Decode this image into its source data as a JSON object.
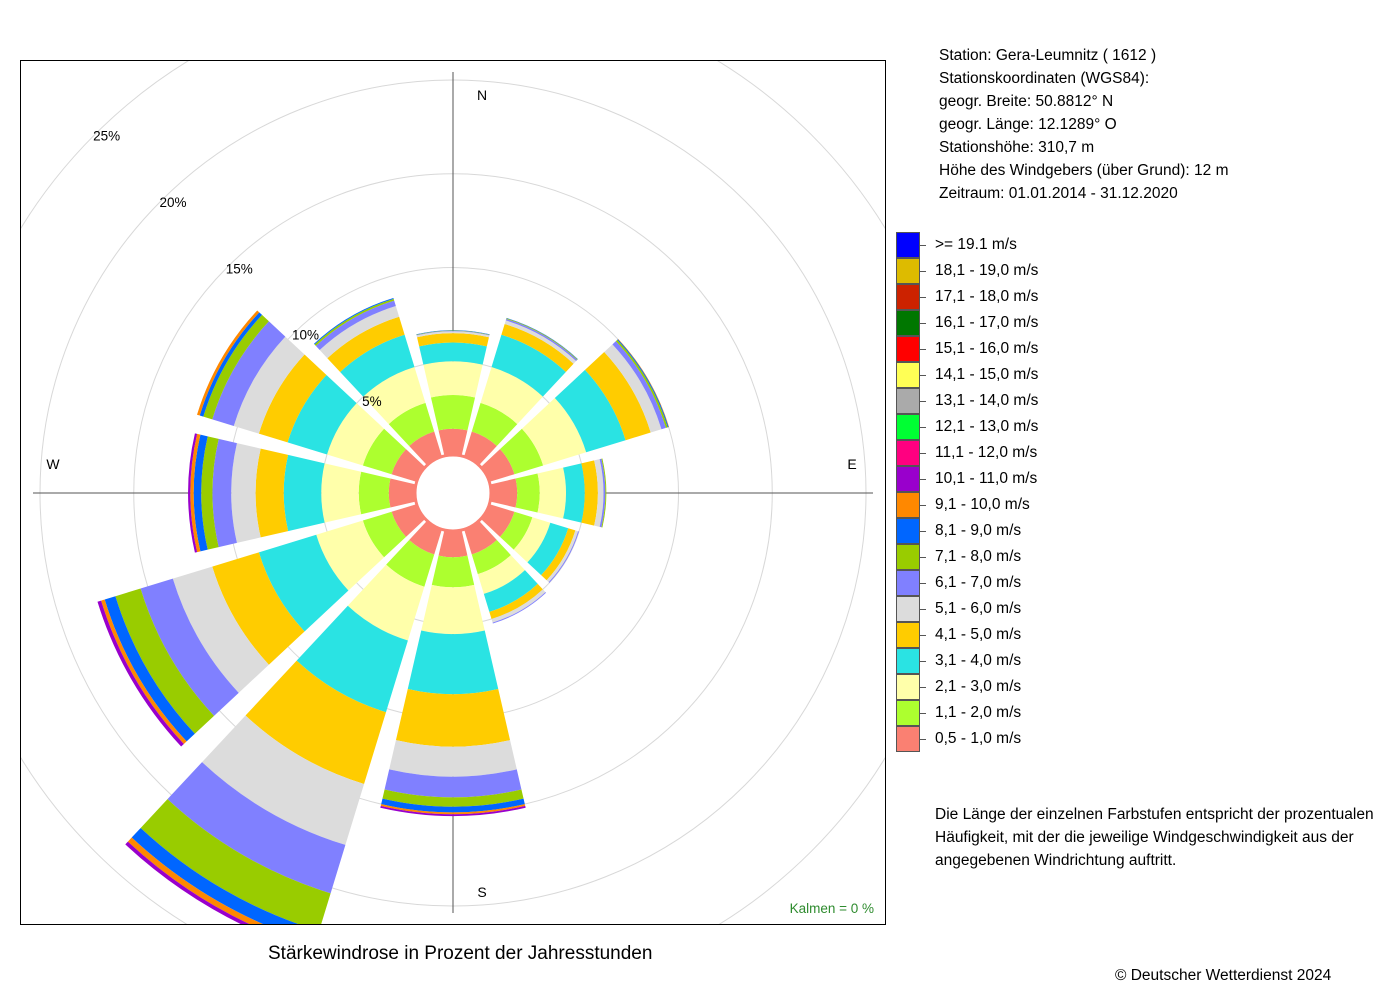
{
  "chart_data": {
    "type": "wind-rose",
    "title": "Stärkewindrose in Prozent der Jahresstunden",
    "directions_deg": [
      0,
      30,
      60,
      90,
      120,
      150,
      180,
      210,
      240,
      270,
      300,
      330
    ],
    "compass_labels": {
      "north": "N",
      "east": "E",
      "south": "S",
      "west": "W"
    },
    "ring_labels": [
      "5%",
      "10%",
      "15%",
      "20%",
      "25%"
    ],
    "ring_values": [
      5,
      10,
      15,
      20,
      25
    ],
    "calm_label": "Kalmen  =  0 %",
    "speed_classes": [
      {
        "label": "0,5 - 1,0 m/s",
        "color": "#FA8072"
      },
      {
        "label": "1,1 - 2,0 m/s",
        "color": "#ADFF2F"
      },
      {
        "label": "2,1 - 3,0 m/s",
        "color": "#FFFFAA"
      },
      {
        "label": "3,1 - 4,0 m/s",
        "color": "#2AE3E3"
      },
      {
        "label": "4,1 - 5,0 m/s",
        "color": "#FFCC00"
      },
      {
        "label": "5,1 - 6,0 m/s",
        "color": "#DCDCDC"
      },
      {
        "label": "6,1 - 7,0 m/s",
        "color": "#8080FF"
      },
      {
        "label": "7,1 - 8,0 m/s",
        "color": "#99CC00"
      },
      {
        "label": "8,1 - 9,0 m/s",
        "color": "#0066FF"
      },
      {
        "label": "9,1 - 10,0 m/s",
        "color": "#FF8800"
      },
      {
        "label": "10,1 - 11,0 m/s",
        "color": "#9900CC"
      },
      {
        "label": "11,1 - 12,0 m/s",
        "color": "#FF0080"
      },
      {
        "label": "12,1 - 13,0 m/s",
        "color": "#00FF33"
      },
      {
        "label": "13,1 - 14,0 m/s",
        "color": "#AAAAAA"
      },
      {
        "label": "14,1 - 15,0 m/s",
        "color": "#FFFF55"
      },
      {
        "label": "15,1 - 16,0 m/s",
        "color": "#FF0000"
      },
      {
        "label": "16,1 - 17,0 m/s",
        "color": "#007700"
      },
      {
        "label": "17,1 - 18,0 m/s",
        "color": "#CC2200"
      },
      {
        "label": "18,1 - 19,0 m/s",
        "color": "#DDBB00"
      },
      {
        "label": ">= 19.1 m/s",
        "color": "#0000FF"
      }
    ],
    "cumulative_percent": {
      "0": [
        1.4,
        3.2,
        5.0,
        6.0,
        6.5,
        6.6,
        6.62,
        6.64,
        6.66
      ],
      "30": [
        1.4,
        3.0,
        5.0,
        6.8,
        7.4,
        7.6,
        7.68,
        7.72,
        7.74
      ],
      "60": [
        1.4,
        3.0,
        5.4,
        7.6,
        9.0,
        9.6,
        9.85,
        9.95,
        10.0,
        10.02
      ],
      "90": [
        1.4,
        2.6,
        4.0,
        5.0,
        5.7,
        6.0,
        6.1,
        6.15
      ],
      "120": [
        1.4,
        2.4,
        3.4,
        4.4,
        4.8,
        4.95,
        5.0
      ],
      "150": [
        1.4,
        2.5,
        3.6,
        4.6,
        5.0,
        5.2,
        5.25
      ],
      "180": [
        1.4,
        3.0,
        5.5,
        8.7,
        11.5,
        13.1,
        14.2,
        14.7,
        15.0,
        15.1,
        15.2
      ],
      "210": [
        1.4,
        3.2,
        6.2,
        10.2,
        14.2,
        17.6,
        20.3,
        22.4,
        23.1,
        23.4,
        23.6
      ],
      "240": [
        1.4,
        3.0,
        5.6,
        8.8,
        11.4,
        13.6,
        15.4,
        16.8,
        17.4,
        17.6,
        17.8
      ],
      "270": [
        1.4,
        3.0,
        5.0,
        7.0,
        8.5,
        9.8,
        10.8,
        11.4,
        11.8,
        11.98,
        12.1
      ],
      "300": [
        1.4,
        3.0,
        5.0,
        7.2,
        8.8,
        10.2,
        11.4,
        11.9,
        12.1,
        12.25
      ],
      "330": [
        1.4,
        3.0,
        5.0,
        6.8,
        7.8,
        8.4,
        8.7,
        8.8,
        8.85
      ]
    }
  },
  "info": {
    "station": "Station:  Gera-Leumnitz  ( 1612 )",
    "coords_header": "Stationskoordinaten (WGS84):",
    "lat": "geogr. Breite: 50.8812° N",
    "lon": "geogr. Länge: 12.1289° O",
    "elevation": "Stationshöhe: 310,7 m",
    "anemometer_height": "Höhe des Windgebers (über Grund): 12 m",
    "period": "Zeitraum: 01.01.2014 - 31.12.2020"
  },
  "note": "Die Länge der einzelnen Farbstufen entspricht der prozentualen Häufigkeit, mit der die jeweilige Windgeschwindigkeit aus der angegebenen Windrichtung auftritt.",
  "caption": "Stärkewindrose in Prozent der Jahresstunden",
  "copyright": "© Deutscher Wetterdienst  2024"
}
